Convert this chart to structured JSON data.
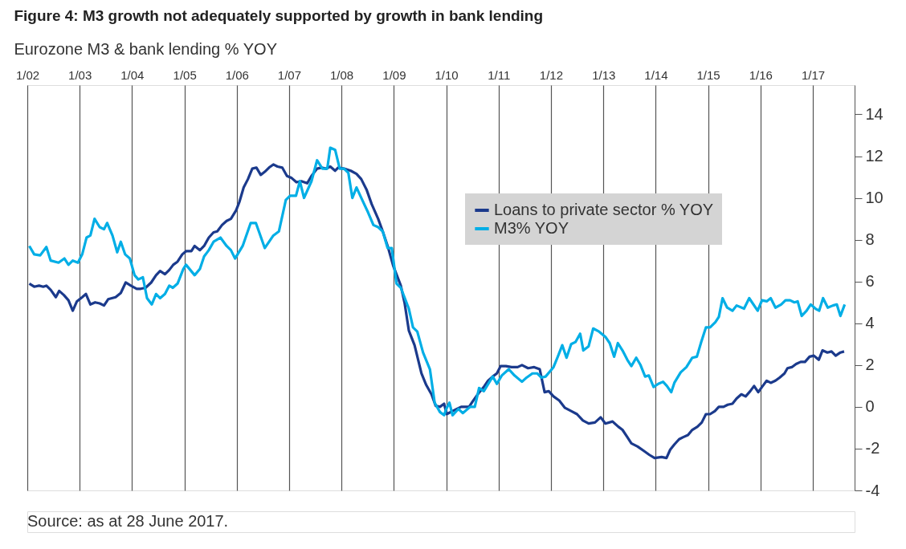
{
  "chart_data": {
    "type": "line",
    "title": "Figure 4: M3 growth not adequately supported by growth in bank lending",
    "subtitle": "Eurozone M3 & bank lending % YOY",
    "annotations": [
      "Source: as at 28 June 2017."
    ],
    "xlim": [
      "2002-01-01",
      "2017-10-19"
    ],
    "ylim": [
      -4,
      15.4
    ],
    "xticks": [
      {
        "value": "2002-01",
        "label": "1/02"
      },
      {
        "value": "2003-01",
        "label": "1/03"
      },
      {
        "value": "2004-01",
        "label": "1/04"
      },
      {
        "value": "2005-01",
        "label": "1/05"
      },
      {
        "value": "2006-01",
        "label": "1/06"
      },
      {
        "value": "2007-01",
        "label": "1/07"
      },
      {
        "value": "2008-01",
        "label": "1/08"
      },
      {
        "value": "2009-01",
        "label": "1/09"
      },
      {
        "value": "2010-01",
        "label": "1/10"
      },
      {
        "value": "2011-01",
        "label": "1/11"
      },
      {
        "value": "2012-01",
        "label": "1/12"
      },
      {
        "value": "2013-01",
        "label": "1/13"
      },
      {
        "value": "2014-01",
        "label": "1/14"
      },
      {
        "value": "2015-01",
        "label": "1/15"
      },
      {
        "value": "2016-01",
        "label": "1/16"
      },
      {
        "value": "2017-01",
        "label": "1/17"
      }
    ],
    "yticks": [
      -4,
      -2,
      0,
      2,
      4,
      6,
      8,
      10,
      12,
      14
    ],
    "grid": "x",
    "legend": "top right",
    "series": [
      {
        "name": "Loans to private sector % YOY",
        "color": "#1b3a8c",
        "x": [
          "2002-01-15",
          "2002-02-18",
          "2002-03-24",
          "2002-04-22",
          "2002-05-14",
          "2002-06-13",
          "2002-07-19",
          "2002-08-11",
          "2002-09-13",
          "2002-10-15",
          "2002-11-14",
          "2002-12-13",
          "2003-01-19",
          "2003-02-14",
          "2003-03-17",
          "2003-04-19",
          "2003-05-21",
          "2003-06-20",
          "2003-07-19",
          "2003-09-09",
          "2003-10-15",
          "2003-11-18",
          "2003-12-24",
          "2004-02-03",
          "2004-03-02",
          "2004-04-05",
          "2004-05-14",
          "2004-06-17",
          "2004-07-15",
          "2004-08-18",
          "2004-09-17",
          "2004-10-15",
          "2004-11-14",
          "2004-12-17",
          "2005-01-12",
          "2005-02-18",
          "2005-03-13",
          "2005-04-19",
          "2005-05-18",
          "2005-06-20",
          "2005-07-23",
          "2005-08-18",
          "2005-09-20",
          "2005-10-22",
          "2005-11-21",
          "2005-12-27",
          "2006-01-19",
          "2006-02-18",
          "2006-03-20",
          "2006-04-19",
          "2006-05-18",
          "2006-06-17",
          "2006-07-15",
          "2006-08-14",
          "2006-09-13",
          "2006-10-12",
          "2006-11-14",
          "2006-12-17",
          "2007-01-19",
          "2007-02-21",
          "2007-03-27",
          "2007-05-07",
          "2007-06-06",
          "2007-07-15",
          "2007-08-14",
          "2007-09-17",
          "2007-10-15",
          "2007-11-18",
          "2007-12-09",
          "2008-01-19",
          "2008-03-06",
          "2008-04-15",
          "2008-05-18",
          "2008-06-24",
          "2008-07-30",
          "2008-09-13",
          "2008-10-15",
          "2008-11-18",
          "2008-12-27",
          "2009-02-18",
          "2009-03-17",
          "2009-04-15",
          "2009-05-25",
          "2009-07-12",
          "2009-08-14",
          "2009-09-20",
          "2009-10-19",
          "2009-11-18",
          "2009-12-17",
          "2010-01-04",
          "2010-02-14",
          "2010-04-15",
          "2010-06-09",
          "2010-07-08",
          "2010-08-14",
          "2010-09-20",
          "2010-10-19",
          "2010-11-21",
          "2010-12-20",
          "2011-01-15",
          "2011-02-21",
          "2011-04-01",
          "2011-05-14",
          "2011-06-13",
          "2011-07-26",
          "2011-09-06",
          "2011-10-15",
          "2011-11-18",
          "2011-12-17",
          "2012-01-19",
          "2012-02-28",
          "2012-04-08",
          "2012-05-21",
          "2012-07-01",
          "2012-08-11",
          "2012-09-20",
          "2012-11-03",
          "2012-12-13",
          "2013-01-15",
          "2013-03-06",
          "2013-04-15",
          "2013-05-14",
          "2013-06-17",
          "2013-07-15",
          "2013-08-28",
          "2013-10-08",
          "2013-11-18",
          "2013-12-24",
          "2014-02-11",
          "2014-03-17",
          "2014-04-12",
          "2014-05-11",
          "2014-06-13",
          "2014-07-12",
          "2014-08-14",
          "2014-09-13",
          "2014-10-19",
          "2014-11-18",
          "2014-12-17",
          "2015-01-15",
          "2015-02-18",
          "2015-03-17",
          "2015-04-19",
          "2015-05-18",
          "2015-06-20",
          "2015-07-19",
          "2015-08-21",
          "2015-09-20",
          "2015-10-22",
          "2015-11-18",
          "2015-12-17",
          "2016-01-12",
          "2016-02-14",
          "2016-03-13",
          "2016-04-15",
          "2016-05-14",
          "2016-06-17",
          "2016-07-08",
          "2016-08-07",
          "2016-09-06",
          "2016-10-08",
          "2016-11-07",
          "2016-12-09",
          "2017-01-08",
          "2017-02-11",
          "2017-03-09",
          "2017-04-12",
          "2017-05-11",
          "2017-06-09",
          "2017-07-12",
          "2017-08-07"
        ],
        "values": [
          5.9,
          5.75,
          5.8,
          5.75,
          5.8,
          5.6,
          5.25,
          5.55,
          5.35,
          5.1,
          4.6,
          5.05,
          5.25,
          5.4,
          4.9,
          5.0,
          4.95,
          4.85,
          5.15,
          5.25,
          5.45,
          5.95,
          5.8,
          5.65,
          5.65,
          5.7,
          5.95,
          6.3,
          6.5,
          6.35,
          6.55,
          6.8,
          6.95,
          7.3,
          7.45,
          7.45,
          7.7,
          7.5,
          7.7,
          8.1,
          8.35,
          8.4,
          8.7,
          8.9,
          9.0,
          9.4,
          9.8,
          10.5,
          10.9,
          11.4,
          11.45,
          11.1,
          11.25,
          11.45,
          11.6,
          11.5,
          11.45,
          11.05,
          10.95,
          10.75,
          10.8,
          10.7,
          11.05,
          11.4,
          11.45,
          11.4,
          11.5,
          11.3,
          11.45,
          11.4,
          11.3,
          11.15,
          10.9,
          10.4,
          9.7,
          9.0,
          8.4,
          7.7,
          6.75,
          5.8,
          4.95,
          3.65,
          2.95,
          1.6,
          1.05,
          0.6,
          0.05,
          0.0,
          0.15,
          -0.35,
          -0.2,
          0.0,
          0.0,
          0.3,
          0.65,
          0.95,
          1.25,
          1.45,
          1.6,
          1.95,
          1.95,
          1.9,
          1.9,
          2.0,
          1.85,
          1.9,
          1.8,
          0.7,
          0.75,
          0.5,
          0.3,
          -0.05,
          -0.2,
          -0.35,
          -0.65,
          -0.8,
          -0.75,
          -0.5,
          -0.8,
          -0.7,
          -0.95,
          -1.1,
          -1.45,
          -1.75,
          -1.9,
          -2.1,
          -2.3,
          -2.45,
          -2.4,
          -2.45,
          -2.05,
          -1.8,
          -1.55,
          -1.45,
          -1.35,
          -1.1,
          -0.95,
          -0.75,
          -0.35,
          -0.35,
          -0.2,
          0.0,
          0.0,
          0.1,
          0.15,
          0.4,
          0.6,
          0.5,
          0.75,
          1.0,
          0.7,
          0.95,
          1.25,
          1.15,
          1.25,
          1.4,
          1.6,
          1.85,
          1.9,
          2.05,
          2.15,
          2.15,
          2.4,
          2.45,
          2.25,
          2.7,
          2.6,
          2.65,
          2.45,
          2.6,
          2.65
        ]
      },
      {
        "name": "M3% YOY",
        "color": "#00aee6",
        "x": [
          "2002-01-15",
          "2002-02-18",
          "2002-04-01",
          "2002-05-14",
          "2002-06-13",
          "2002-08-07",
          "2002-09-17",
          "2002-10-15",
          "2002-11-14",
          "2002-12-20",
          "2003-01-19",
          "2003-02-18",
          "2003-03-17",
          "2003-04-15",
          "2003-05-21",
          "2003-06-20",
          "2003-07-12",
          "2003-08-18",
          "2003-09-20",
          "2003-10-15",
          "2003-11-14",
          "2003-12-17",
          "2004-01-19",
          "2004-02-14",
          "2004-03-17",
          "2004-04-15",
          "2004-05-18",
          "2004-06-17",
          "2004-07-15",
          "2004-08-18",
          "2004-09-17",
          "2004-10-12",
          "2004-11-14",
          "2004-12-24",
          "2005-01-12",
          "2005-03-13",
          "2005-04-19",
          "2005-05-18",
          "2005-06-20",
          "2005-07-23",
          "2005-09-09",
          "2005-10-22",
          "2005-11-21",
          "2005-12-20",
          "2006-02-11",
          "2006-04-08",
          "2006-05-14",
          "2006-06-09",
          "2006-07-15",
          "2006-09-13",
          "2006-10-22",
          "2006-12-09",
          "2007-01-08",
          "2007-02-18",
          "2007-03-17",
          "2007-04-15",
          "2007-06-06",
          "2007-07-15",
          "2007-08-21",
          "2007-09-24",
          "2007-10-15",
          "2007-11-18",
          "2007-12-20",
          "2008-01-19",
          "2008-02-18",
          "2008-03-17",
          "2008-04-15",
          "2008-05-25",
          "2008-07-05",
          "2008-08-11",
          "2008-09-13",
          "2008-10-15",
          "2008-11-18",
          "2008-12-17",
          "2009-01-19",
          "2009-02-18",
          "2009-04-15",
          "2009-05-14",
          "2009-06-13",
          "2009-07-23",
          "2009-09-09",
          "2009-10-12",
          "2009-11-18",
          "2009-12-17",
          "2010-01-01",
          "2010-01-23",
          "2010-02-14",
          "2010-03-27",
          "2010-04-26",
          "2010-06-17",
          "2010-07-19",
          "2010-08-18",
          "2010-09-20",
          "2010-11-21",
          "2010-12-20",
          "2011-01-23",
          "2011-03-13",
          "2011-04-22",
          "2011-06-13",
          "2011-07-15",
          "2011-08-25",
          "2011-09-27",
          "2011-10-26",
          "2011-11-25",
          "2012-01-19",
          "2012-02-18",
          "2012-03-20",
          "2012-04-19",
          "2012-05-21",
          "2012-06-20",
          "2012-07-23",
          "2012-08-14",
          "2012-09-20",
          "2012-10-22",
          "2012-12-02",
          "2013-01-15",
          "2013-02-14",
          "2013-03-17",
          "2013-04-12",
          "2013-05-14",
          "2013-06-17",
          "2013-07-15",
          "2013-08-18",
          "2013-09-17",
          "2013-10-19",
          "2013-11-14",
          "2013-12-17",
          "2014-01-19",
          "2014-02-21",
          "2014-03-20",
          "2014-04-19",
          "2014-05-11",
          "2014-06-24",
          "2014-08-03",
          "2014-09-13",
          "2014-10-15",
          "2014-11-14",
          "2014-12-17",
          "2015-01-15",
          "2015-02-21",
          "2015-03-17",
          "2015-04-12",
          "2015-05-14",
          "2015-06-20",
          "2015-07-19",
          "2015-09-09",
          "2015-10-15",
          "2015-12-13",
          "2016-01-12",
          "2016-02-14",
          "2016-03-13",
          "2016-04-15",
          "2016-05-25",
          "2016-06-24",
          "2016-07-26",
          "2016-08-25",
          "2016-09-17",
          "2016-10-15",
          "2016-11-18",
          "2016-12-17",
          "2017-01-19",
          "2017-02-14",
          "2017-03-13",
          "2017-04-15",
          "2017-05-21",
          "2017-06-17",
          "2017-07-12",
          "2017-08-11"
        ],
        "values": [
          7.7,
          7.3,
          7.25,
          7.65,
          7.0,
          6.9,
          7.1,
          6.8,
          7.0,
          6.9,
          7.3,
          8.1,
          8.2,
          9.0,
          8.6,
          8.5,
          8.8,
          8.2,
          7.4,
          7.9,
          7.3,
          7.1,
          6.3,
          6.1,
          6.2,
          5.2,
          4.9,
          5.4,
          5.2,
          5.4,
          5.8,
          5.7,
          5.9,
          6.6,
          6.8,
          6.3,
          6.6,
          7.2,
          7.5,
          7.9,
          8.1,
          7.7,
          7.5,
          7.1,
          7.7,
          8.8,
          8.8,
          8.3,
          7.6,
          8.2,
          8.4,
          9.9,
          10.1,
          10.1,
          10.8,
          10.0,
          10.8,
          11.8,
          11.4,
          11.4,
          12.4,
          12.3,
          11.4,
          11.4,
          11.2,
          10.0,
          10.5,
          9.9,
          9.3,
          8.7,
          8.6,
          8.4,
          7.6,
          7.6,
          5.9,
          5.7,
          4.7,
          3.8,
          3.6,
          2.6,
          1.8,
          0.2,
          -0.25,
          -0.4,
          -0.1,
          0.2,
          -0.4,
          -0.1,
          -0.3,
          0.0,
          0.0,
          0.9,
          0.75,
          1.45,
          1.1,
          1.5,
          1.8,
          1.5,
          1.2,
          1.4,
          1.6,
          1.6,
          1.4,
          1.45,
          1.9,
          2.4,
          2.95,
          2.35,
          3.0,
          3.1,
          3.5,
          2.7,
          2.9,
          3.75,
          3.6,
          3.35,
          3.05,
          2.4,
          3.05,
          2.7,
          2.25,
          1.95,
          2.35,
          2.0,
          1.45,
          1.5,
          0.95,
          1.1,
          1.2,
          1.0,
          0.7,
          1.15,
          1.65,
          1.9,
          2.35,
          2.4,
          3.1,
          3.8,
          3.8,
          4.05,
          4.3,
          5.2,
          4.75,
          4.6,
          4.85,
          4.7,
          5.2,
          4.6,
          5.1,
          5.05,
          5.2,
          4.75,
          4.9,
          5.1,
          5.1,
          5.0,
          5.05,
          4.35,
          4.6,
          4.9,
          4.7,
          4.6,
          5.2,
          4.75,
          4.85,
          4.9,
          4.35,
          4.9
        ]
      }
    ]
  }
}
